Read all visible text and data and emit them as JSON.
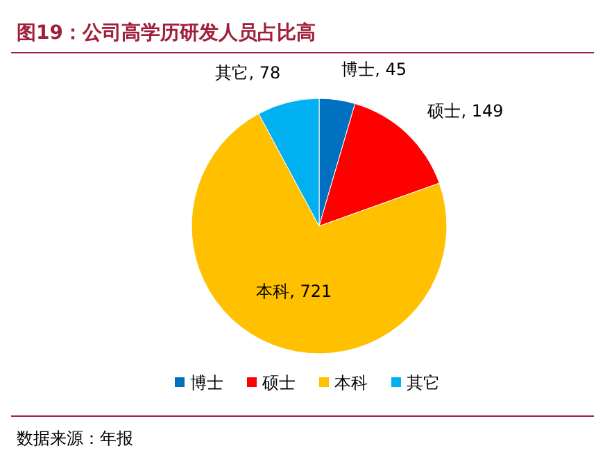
{
  "chart_data": {
    "type": "pie",
    "title": "图19：公司高学历研发人员占比高",
    "categories": [
      "博士",
      "硕士",
      "本科",
      "其它"
    ],
    "values": [
      45,
      149,
      721,
      78
    ],
    "colors": [
      "#0070c0",
      "#ff0000",
      "#ffc000",
      "#00b0f0"
    ],
    "value_labels": [
      "博士, 45",
      "硕士, 149",
      "本科, 721",
      "其它, 78"
    ],
    "legend": "bottom",
    "annotations": [
      "数据来源：年报"
    ]
  }
}
